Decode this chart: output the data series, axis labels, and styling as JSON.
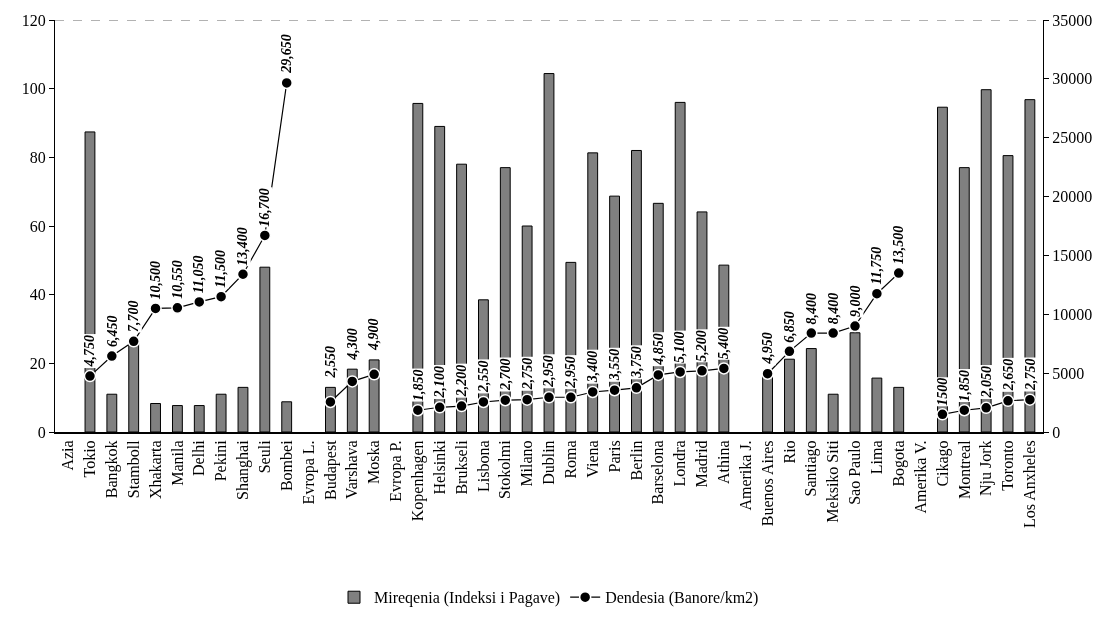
{
  "chart_data": {
    "type": "bar",
    "categories": [
      "Azia",
      "Tokio",
      "Bangkok",
      "Stamboll",
      "Xhakarta",
      "Manila",
      "Delhi",
      "Pekini",
      "Shanghai",
      "Seuli",
      "Bombei",
      "Evropa L.",
      "Budapest",
      "Varshava",
      "Moska",
      "Evropa P.",
      "Kopenhagen",
      "Helsinki",
      "Brukseli",
      "Lisbona",
      "Stokolmi",
      "Milano",
      "Dublin",
      "Roma",
      "Viena",
      "Paris",
      "Berlin",
      "Barselona",
      "Londra",
      "Madrid",
      "Athina",
      "Amerika J.",
      "Buenos Aires",
      "Rio",
      "Santiago",
      "Meksiko Siti",
      "Sao Paulo",
      "Lima",
      "Bogota",
      "Amerika V.",
      "Cikago",
      "Montreal",
      "Nju Jork",
      "Toronto",
      "Los Anxheles"
    ],
    "series": [
      {
        "name": "Mireqenia (Indeksi i Pagave)",
        "color": "#808080",
        "values": [
          null,
          87.4,
          11,
          26,
          8.3,
          7.7,
          7.7,
          11,
          13,
          48,
          8.8,
          null,
          13,
          18.3,
          21,
          null,
          95.7,
          89,
          78,
          38.5,
          77,
          60,
          104.4,
          49.4,
          81.3,
          68.7,
          82,
          66.6,
          96,
          64.1,
          48.6,
          null,
          16.6,
          21.2,
          24.3,
          11,
          28.9,
          15.7,
          13,
          null,
          94.6,
          77,
          99.7,
          80.5,
          96.8
        ]
      },
      {
        "name": "Dendesia (Banore/km2)",
        "type": "line",
        "axis": "y2",
        "color": "#000000",
        "marker": "circle",
        "line_style": "solid",
        "values": [
          null,
          4750,
          6450,
          7700,
          10500,
          10550,
          11050,
          11500,
          13400,
          16700,
          29650,
          null,
          2550,
          4300,
          4900,
          null,
          1850,
          2100,
          2200,
          2550,
          2700,
          2750,
          2950,
          2950,
          3400,
          3550,
          3750,
          4850,
          5100,
          5200,
          5400,
          null,
          4950,
          6850,
          8400,
          8400,
          9000,
          11750,
          13500,
          null,
          1500,
          1850,
          2050,
          2650,
          2750
        ],
        "value_labels": [
          null,
          "4,750",
          "6,450",
          "7,700",
          "10,500",
          "10,550",
          "11,050",
          "11,500",
          "13,400",
          "16,700",
          "29,650",
          null,
          "2,550",
          "4,300",
          "4,900",
          null,
          "1,850",
          "2,100",
          "2,200",
          "2,550",
          "2,700",
          "2,750",
          "2,950",
          "2,950",
          "3,400",
          "3,550",
          "3,750",
          "4,850",
          "5,100",
          "5,200",
          "5,400",
          null,
          "4,950",
          "6,850",
          "8,400",
          "8,400",
          "9,000",
          "11,750",
          "13,500",
          null,
          "1500",
          "1,850",
          "2,050",
          "2,650",
          "2,750"
        ]
      }
    ],
    "ylim": [
      0,
      120
    ],
    "yticks": [
      0,
      20,
      40,
      60,
      80,
      100,
      120
    ],
    "y2lim": [
      0,
      35000
    ],
    "y2ticks": [
      0,
      5000,
      10000,
      15000,
      20000,
      25000,
      30000,
      35000
    ],
    "ref_lines": [
      {
        "axis": "y",
        "value": 120,
        "color": "#999999",
        "line_style": "dashed"
      }
    ],
    "legend": "bottom"
  }
}
